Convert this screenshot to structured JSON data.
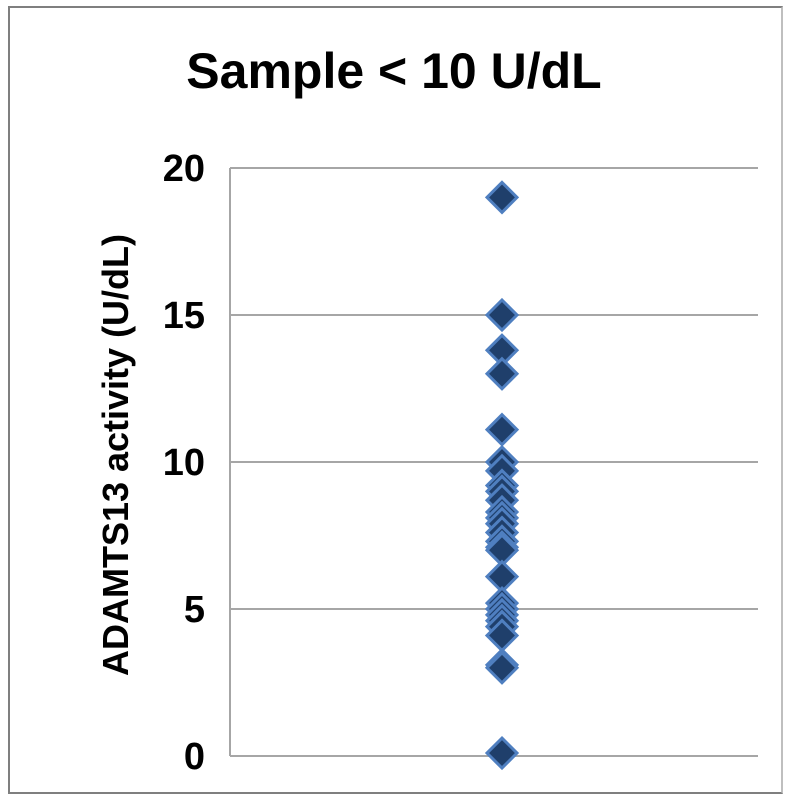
{
  "chart_data": {
    "type": "scatter",
    "title": "Sample < 10 U/dL",
    "xlabel": "",
    "ylabel": "ADAMTS13 activity (U/dL)",
    "ylim": [
      0,
      20
    ],
    "yticks": [
      "0",
      "5",
      "10",
      "15",
      "20"
    ],
    "grid": true,
    "marker": "diamond",
    "series": [
      {
        "x": [
          1,
          1,
          1,
          1,
          1,
          1,
          1,
          1,
          1,
          1,
          1,
          1,
          1,
          1,
          1,
          1,
          1,
          1,
          1,
          1,
          1,
          1,
          1,
          1,
          1,
          1,
          1
        ],
        "y": [
          19,
          15,
          13.8,
          13,
          11.1,
          10,
          9.7,
          9.2,
          9,
          8.7,
          8.3,
          8.1,
          7.9,
          7.6,
          7.3,
          7.1,
          7,
          6.1,
          5.2,
          5,
          4.8,
          4.6,
          4.4,
          4.1,
          3.1,
          3,
          0.1
        ]
      }
    ],
    "colors": {
      "marker_fill": "#1f3f6b",
      "marker_stroke": "#4f7fc0",
      "grid": "#a6a6a6",
      "axis": "#a6a6a6"
    }
  }
}
